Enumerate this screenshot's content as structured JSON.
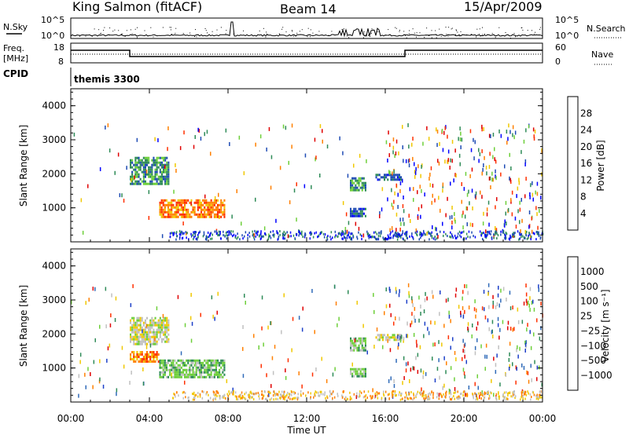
{
  "header": {
    "station": "King Salmon (fitACF)",
    "beam": "Beam 14",
    "date": "15/Apr/2009"
  },
  "nsky_panel": {
    "left_label": "N.Sky",
    "right_label": "N.Search",
    "left_ticks": [
      "10^5",
      "10^0"
    ],
    "right_ticks": [
      "10^5",
      "10^0"
    ]
  },
  "freq_panel": {
    "left_label_1": "Freq.",
    "left_label_2": "[MHz]",
    "right_label": "Nave",
    "left_ticks": [
      "18",
      "8"
    ],
    "right_ticks": [
      "60",
      "0"
    ]
  },
  "cpid_panel": {
    "label": "CPID",
    "value": "themis 3300"
  },
  "chart_data": [
    {
      "type": "heatmap",
      "name": "power",
      "ylabel": "Slant Range [km]",
      "ylim": [
        0,
        4500
      ],
      "yticks": [
        "1000",
        "2000",
        "3000",
        "4000"
      ],
      "ytick_values": [
        1000,
        2000,
        3000,
        4000
      ],
      "colorbar_label": "Power [dB]",
      "colorbar_ticks": [
        "4",
        "8",
        "12",
        "16",
        "20",
        "24",
        "28"
      ],
      "colorbar_colors": [
        "#0000ff",
        "#1e4bb4",
        "#2e8b57",
        "#6ecf3a",
        "#f0c800",
        "#ff8000",
        "#ff3000",
        "#e00000"
      ],
      "regions": [
        {
          "t": [
            3.0,
            5.0
          ],
          "r": [
            1700,
            2500
          ],
          "level": 2
        },
        {
          "t": [
            4.5,
            7.8
          ],
          "r": [
            750,
            1250
          ],
          "level": 5
        },
        {
          "t": [
            14.2,
            15.0
          ],
          "r": [
            1500,
            1900
          ],
          "level": 2
        },
        {
          "t": [
            14.2,
            15.0
          ],
          "r": [
            750,
            1000
          ],
          "level": 1
        },
        {
          "t": [
            15.5,
            16.8
          ],
          "r": [
            1800,
            2000
          ],
          "level": 1
        }
      ]
    },
    {
      "type": "heatmap",
      "name": "velocity",
      "ylabel": "Slant Range [km]",
      "ylim": [
        0,
        4500
      ],
      "yticks": [
        "1000",
        "2000",
        "3000",
        "4000"
      ],
      "ytick_values": [
        1000,
        2000,
        3000,
        4000
      ],
      "xlabel": "Time UT",
      "xticks": [
        "00:00",
        "04:00",
        "08:00",
        "12:00",
        "16:00",
        "20:00",
        "00:00"
      ],
      "xlim": [
        0,
        24
      ],
      "colorbar_label": "Velocity [m s⁻¹]",
      "colorbar_ticks": [
        "1000",
        "500",
        "100",
        "25",
        "−25",
        "−100",
        "−500",
        "−1000"
      ],
      "colorbar_colors": [
        "#1c3fc8",
        "#2f6ab8",
        "#2e8b57",
        "#6ecf3a",
        "#c0c0c0",
        "#f0c800",
        "#ff8000",
        "#ff3000",
        "#e00000"
      ],
      "regions": [
        {
          "t": [
            3.0,
            5.0
          ],
          "r": [
            1700,
            2500
          ],
          "level": 4
        },
        {
          "t": [
            3.0,
            4.5
          ],
          "r": [
            1200,
            1500
          ],
          "level": 6
        },
        {
          "t": [
            4.5,
            7.8
          ],
          "r": [
            750,
            1250
          ],
          "level": 3
        },
        {
          "t": [
            14.2,
            15.0
          ],
          "r": [
            1500,
            1900
          ],
          "level": 3
        },
        {
          "t": [
            14.2,
            15.0
          ],
          "r": [
            750,
            1000
          ],
          "level": 3
        },
        {
          "t": [
            15.5,
            16.8
          ],
          "r": [
            1800,
            2000
          ],
          "level": 4
        }
      ]
    }
  ]
}
